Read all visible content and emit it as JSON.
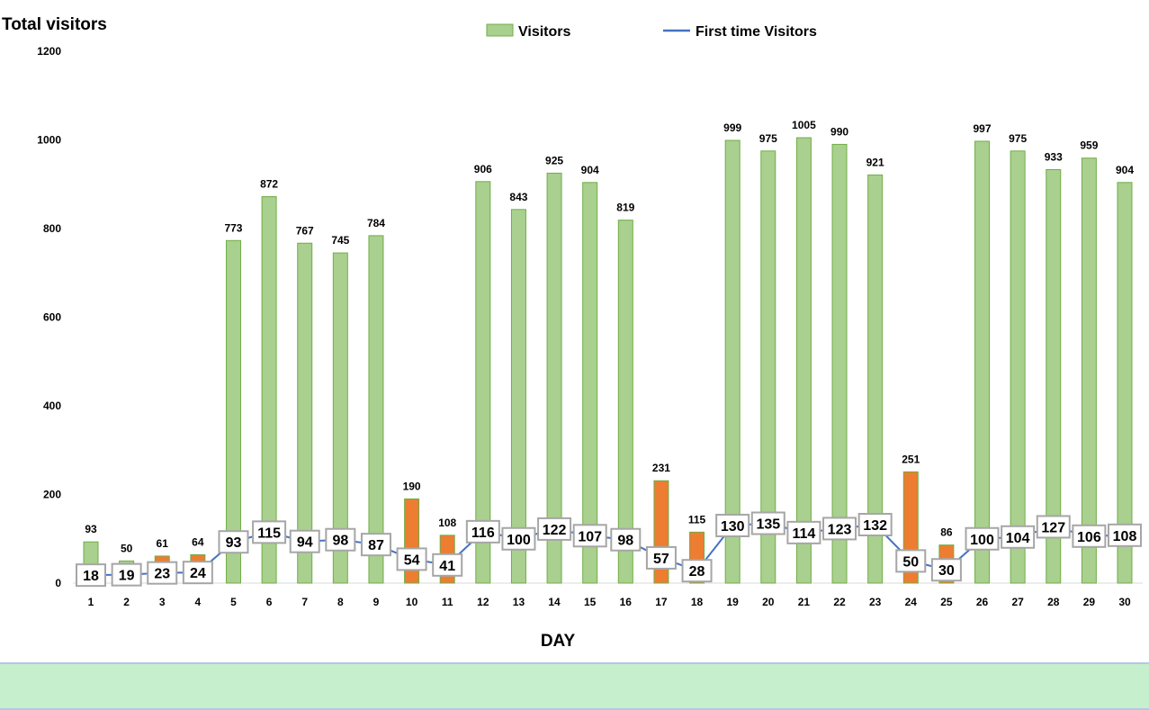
{
  "chart_data": {
    "type": "bar",
    "title": "Total visitors",
    "xlabel": "DAY",
    "ylabel": "",
    "ylim": [
      0,
      1200
    ],
    "yticks": [
      0,
      200,
      400,
      600,
      800,
      1000,
      1200
    ],
    "grid": false,
    "legend_position": "top-center",
    "categories": [
      "1",
      "2",
      "3",
      "4",
      "5",
      "6",
      "7",
      "8",
      "9",
      "10",
      "11",
      "12",
      "13",
      "14",
      "15",
      "16",
      "17",
      "18",
      "19",
      "20",
      "21",
      "22",
      "23",
      "24",
      "25",
      "26",
      "27",
      "28",
      "29",
      "30"
    ],
    "series": [
      {
        "name": "Visitors",
        "type": "bar",
        "color": "#a9d08e",
        "border": "#70ad47",
        "values": [
          93,
          50,
          61,
          64,
          773,
          872,
          767,
          745,
          784,
          190,
          108,
          906,
          843,
          925,
          904,
          819,
          231,
          115,
          999,
          975,
          1005,
          990,
          921,
          251,
          86,
          997,
          975,
          933,
          959,
          904
        ],
        "highlight_color": "#ed7d31",
        "highlighted_days": [
          3,
          4,
          10,
          11,
          17,
          18,
          24,
          25
        ]
      },
      {
        "name": "First time Visitors",
        "type": "line",
        "color": "#4472c4",
        "values": [
          18,
          19,
          23,
          24,
          93,
          115,
          94,
          98,
          87,
          54,
          41,
          116,
          100,
          122,
          107,
          98,
          57,
          28,
          130,
          135,
          114,
          123,
          132,
          50,
          30,
          100,
          104,
          127,
          106,
          108
        ]
      }
    ]
  }
}
